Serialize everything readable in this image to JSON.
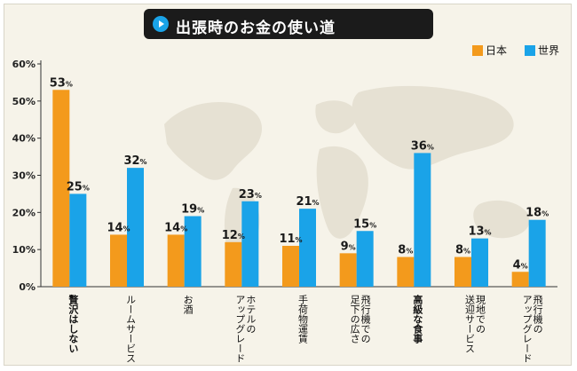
{
  "title": "出張時のお金の使い道",
  "colors": {
    "japan": "#f39a1c",
    "world": "#1aa3e8",
    "title_bg": "#1b1b1b",
    "icon": "#1aa3e8"
  },
  "chart_data": {
    "type": "bar",
    "title": "出張時のお金の使い道",
    "categories": [
      {
        "lines": [
          "贅沢はしない"
        ],
        "bold": true
      },
      {
        "lines": [
          "ルームサービス"
        ],
        "bold": false
      },
      {
        "lines": [
          "お酒"
        ],
        "bold": false
      },
      {
        "lines": [
          "ホテルの",
          "アップグレード"
        ],
        "bold": false
      },
      {
        "lines": [
          "手荷物運賃"
        ],
        "bold": false
      },
      {
        "lines": [
          "飛行機での",
          "足下の広さ"
        ],
        "bold": false
      },
      {
        "lines": [
          "高級な食事"
        ],
        "bold": true
      },
      {
        "lines": [
          "現地での",
          "送迎サービス"
        ],
        "bold": false
      },
      {
        "lines": [
          "飛行機の",
          "アップグレード"
        ],
        "bold": false
      }
    ],
    "series": [
      {
        "name": "日本",
        "color": "#f39a1c",
        "values": [
          53,
          14,
          14,
          12,
          11,
          9,
          8,
          8,
          4
        ]
      },
      {
        "name": "世界",
        "color": "#1aa3e8",
        "values": [
          25,
          32,
          19,
          23,
          21,
          15,
          36,
          13,
          18
        ]
      }
    ],
    "value_suffix": "%",
    "yticks": [
      "0%",
      "10%",
      "20%",
      "30%",
      "40%",
      "50%",
      "60%"
    ],
    "ylim": [
      0,
      60
    ],
    "grid": false,
    "legend": "top-right"
  }
}
